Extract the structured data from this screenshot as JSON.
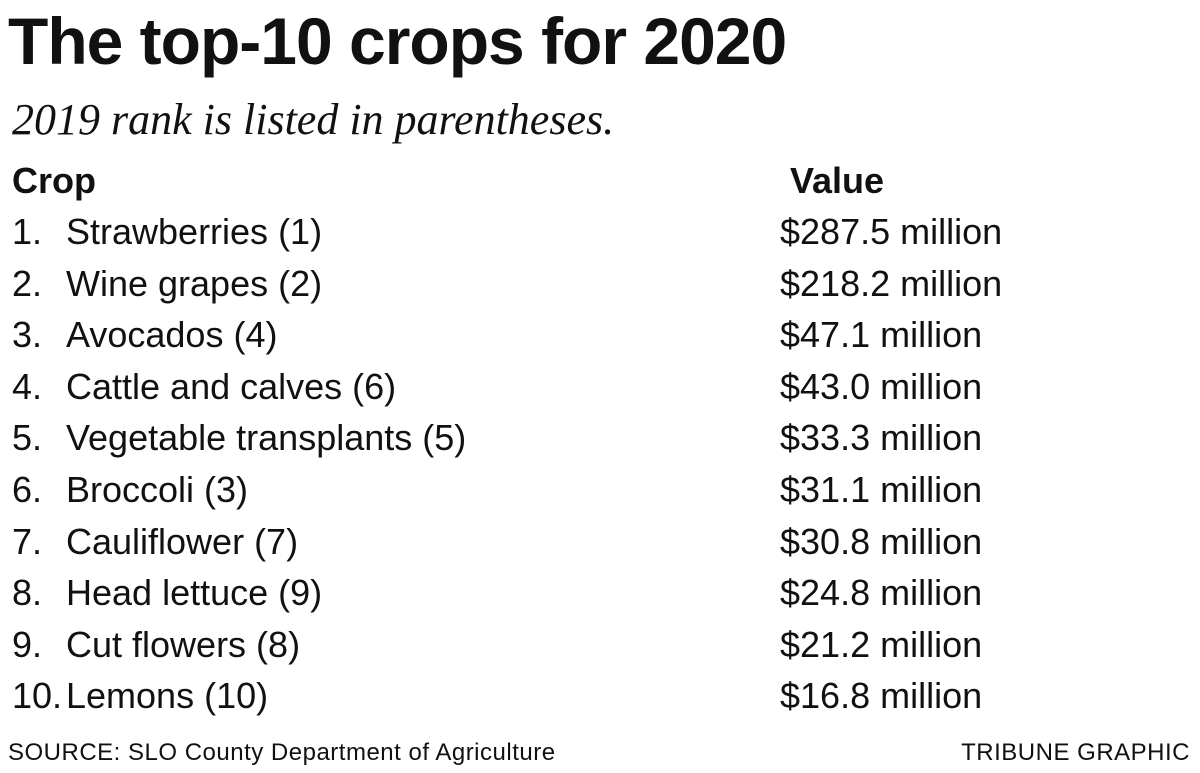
{
  "title": "The top-10 crops for 2020",
  "subtitle": "2019 rank is listed in parentheses.",
  "columns": {
    "crop": "Crop",
    "value": "Value"
  },
  "rows": [
    {
      "rank": "1.",
      "crop": "Strawberries (1)",
      "value": "$287.5 million"
    },
    {
      "rank": "2.",
      "crop": "Wine grapes (2)",
      "value": "$218.2 million"
    },
    {
      "rank": "3.",
      "crop": "Avocados (4)",
      "value": "$47.1 million"
    },
    {
      "rank": "4.",
      "crop": "Cattle and calves (6)",
      "value": "$43.0 million"
    },
    {
      "rank": "5.",
      "crop": "Vegetable transplants (5)",
      "value": "$33.3 million"
    },
    {
      "rank": "6.",
      "crop": "Broccoli (3)",
      "value": "$31.1 million"
    },
    {
      "rank": "7.",
      "crop": "Cauliflower (7)",
      "value": "$30.8 million"
    },
    {
      "rank": "8.",
      "crop": "Head lettuce (9)",
      "value": "$24.8 million"
    },
    {
      "rank": "9.",
      "crop": "Cut flowers (8)",
      "value": "$21.2 million"
    },
    {
      "rank": "10.",
      "crop": "Lemons (10)",
      "value": "$16.8 million"
    }
  ],
  "footer": {
    "source": "SOURCE: SLO County Department of Agriculture",
    "credit": "TRIBUNE GRAPHIC"
  }
}
